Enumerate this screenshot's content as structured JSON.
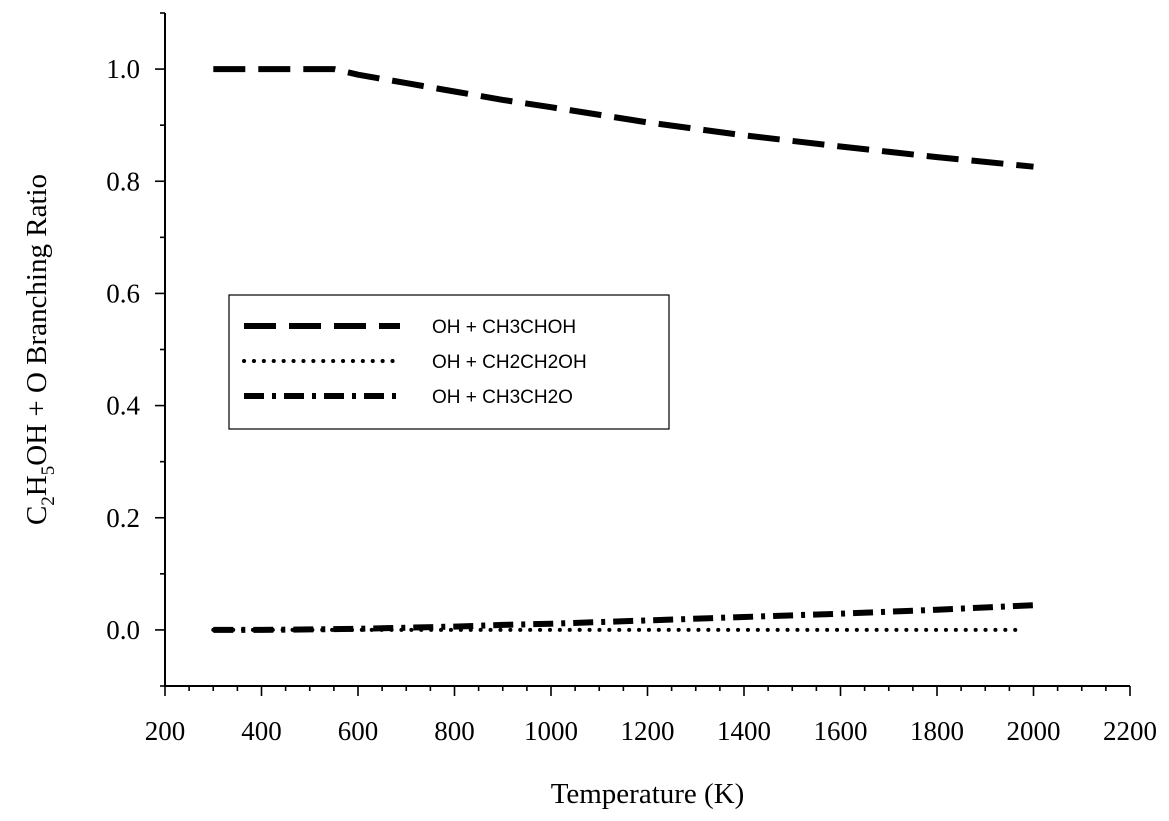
{
  "chart_data": {
    "type": "line",
    "xlabel": "Temperature (K)",
    "ylabel_parts": {
      "c": "C",
      "c_sub": "2",
      "h": "H",
      "h_sub": "5",
      "rest": "OH + O Branching Ratio"
    },
    "xlim": [
      200,
      2200
    ],
    "ylim": [
      -0.1,
      1.1
    ],
    "x_ticks": [
      200,
      400,
      600,
      800,
      1000,
      1200,
      1400,
      1600,
      1800,
      2000,
      2200
    ],
    "y_ticks": [
      0.0,
      0.2,
      0.4,
      0.6,
      0.8,
      1.0
    ],
    "x_tick_labels": [
      "200",
      "400",
      "600",
      "800",
      "1000",
      "1200",
      "1400",
      "1600",
      "1800",
      "2000",
      "2200"
    ],
    "y_tick_labels": [
      "0.0",
      "0.2",
      "0.4",
      "0.6",
      "0.8",
      "1.0"
    ],
    "x_minor_step": 50,
    "y_minor_step": 0.1,
    "grid": false,
    "legend_position": "center-left",
    "series": [
      {
        "name": "OH + CH3CHOH",
        "style": "dashed",
        "x": [
          300,
          400,
          500,
          550,
          600,
          700,
          800,
          900,
          1000,
          1200,
          1400,
          1600,
          1800,
          2000
        ],
        "y": [
          1.0,
          1.0,
          1.0,
          1.0,
          0.99,
          0.975,
          0.96,
          0.945,
          0.932,
          0.905,
          0.882,
          0.862,
          0.843,
          0.826
        ]
      },
      {
        "name": "OH + CH2CH2OH",
        "style": "dotted",
        "x": [
          300,
          500,
          700,
          900,
          1100,
          1300,
          1500,
          1700,
          1900,
          1980
        ],
        "y": [
          0.0,
          0.0,
          0.0,
          0.0,
          0.0,
          0.0,
          0.0,
          0.0,
          0.0,
          0.0
        ]
      },
      {
        "name": "OH + CH3CH2O",
        "style": "dashdot",
        "x": [
          300,
          400,
          500,
          600,
          700,
          800,
          900,
          1000,
          1200,
          1400,
          1600,
          1800,
          2000
        ],
        "y": [
          0.0,
          0.0,
          0.001,
          0.002,
          0.004,
          0.006,
          0.009,
          0.011,
          0.017,
          0.023,
          0.029,
          0.036,
          0.044
        ]
      }
    ]
  }
}
